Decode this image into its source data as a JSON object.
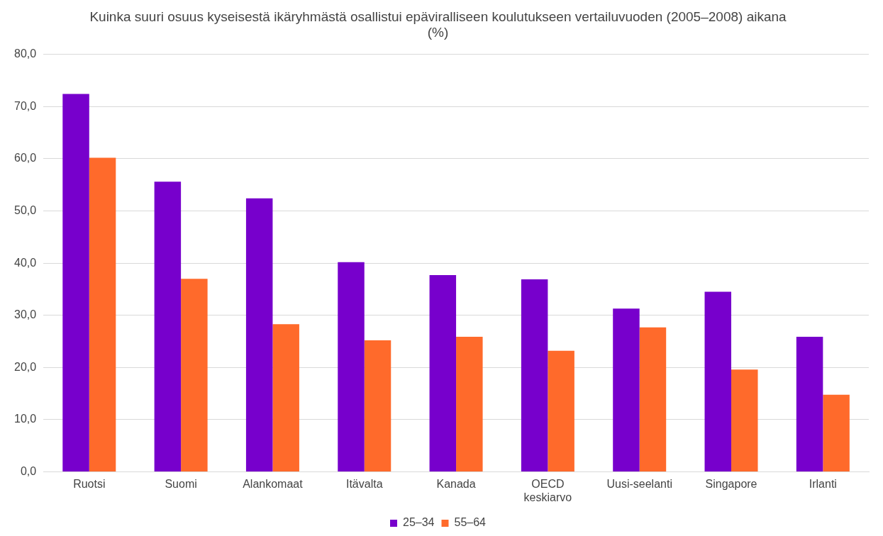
{
  "chart_data": {
    "type": "bar",
    "title": "Kuinka suuri osuus kyseisestä ikäryhmästä osallistui epäviralliseen koulutukseen vertailuvuoden (2005–2008) aikana (%)",
    "categories": [
      "Ruotsi",
      "Suomi",
      "Alankomaat",
      "Itävalta",
      "Kanada",
      "OECD keskiarvo",
      "Uusi-seelanti",
      "Singapore",
      "Irlanti"
    ],
    "series": [
      {
        "name": "25–34",
        "color": "#7700cc",
        "values": [
          72.4,
          55.6,
          52.4,
          40.2,
          37.7,
          36.9,
          31.3,
          34.5,
          25.9
        ]
      },
      {
        "name": "55–64",
        "color": "#ff6a2b",
        "values": [
          60.2,
          37.0,
          28.3,
          25.2,
          25.9,
          23.2,
          27.7,
          19.6,
          14.8
        ]
      }
    ],
    "ylim": [
      0,
      80
    ],
    "yticks": [
      {
        "value": 0,
        "label": "0,0"
      },
      {
        "value": 10,
        "label": "10,0"
      },
      {
        "value": 20,
        "label": "20,0"
      },
      {
        "value": 30,
        "label": "30,0"
      },
      {
        "value": 40,
        "label": "40,0"
      },
      {
        "value": 50,
        "label": "50,0"
      },
      {
        "value": 60,
        "label": "60,0"
      },
      {
        "value": 70,
        "label": "70,0"
      },
      {
        "value": 80,
        "label": "80,0"
      }
    ],
    "grid": "y",
    "legend": "bottom"
  }
}
